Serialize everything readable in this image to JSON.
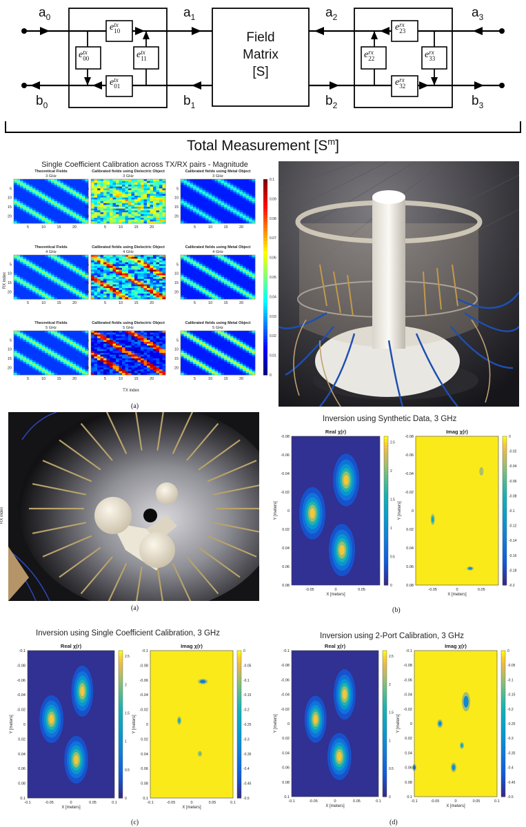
{
  "diagram": {
    "ports": {
      "a0": "a",
      "a0_sub": "0",
      "a1": "a",
      "a1_sub": "1",
      "a2": "a",
      "a2_sub": "2",
      "a3": "a",
      "a3_sub": "3",
      "b0": "b",
      "b0_sub": "0",
      "b1": "b",
      "b1_sub": "1",
      "b2": "b",
      "b2_sub": "2",
      "b3": "b",
      "b3_sub": "3"
    },
    "tx_terms": {
      "e10": "e",
      "e10_sup": "tx",
      "e10_sub": "10",
      "e00": "e",
      "e00_sup": "tx",
      "e00_sub": "00",
      "e11": "e",
      "e11_sup": "tx",
      "e11_sub": "11",
      "e01": "e",
      "e01_sup": "tx",
      "e01_sub": "01"
    },
    "rx_terms": {
      "e23": "e",
      "e23_sup": "rx",
      "e23_sub": "23",
      "e22": "e",
      "e22_sup": "rx",
      "e22_sub": "22",
      "e33": "e",
      "e33_sup": "rx",
      "e33_sub": "33",
      "e32": "e",
      "e32_sup": "rx",
      "e32_sub": "32"
    },
    "field_box": {
      "line1": "Field",
      "line2": "Matrix",
      "line3": "[S]"
    },
    "total_label": "Total Measurement [S",
    "total_label_sup": "m",
    "total_label_end": "]"
  },
  "grid_figure": {
    "title": "Single Coefficient Calibration across TX/RX pairs - Magnitude",
    "col_titles": [
      "Theoretical Fields",
      "Calibrated fields using Dielectric Object",
      "Calibrated fields using Metal Object"
    ],
    "freqs": [
      "3 GHz",
      "4 GHz",
      "5 GHz"
    ],
    "xlabel": "TX index",
    "ylabel": "RX index",
    "xticks": [
      "5",
      "10",
      "15",
      "20"
    ],
    "yticks": [
      "5",
      "10",
      "15",
      "20"
    ],
    "colorbar_ticks": [
      "0.1",
      "0.09",
      "0.08",
      "0.07",
      "0.06",
      "0.05",
      "0.04",
      "0.03",
      "0.02",
      "0.01",
      "0"
    ],
    "caption": "(a)"
  },
  "side_label": "RX index",
  "caption_a2": "(a)",
  "caption_b": "(b)",
  "caption_c": "(c)",
  "caption_d": "(d)",
  "inversions": [
    {
      "title": "Inversion using Synthetic Data, 3 GHz",
      "real_title": "Real χ(r)",
      "imag_title": "Imag χ(r)",
      "xlabel": "X [meters]",
      "ylabel": "Y [meters]",
      "yticks": [
        "-0.08",
        "-0.06",
        "-0.04",
        "-0.02",
        "0",
        "0.02",
        "0.04",
        "0.06",
        "0.08"
      ],
      "xticks": [
        "-0.05",
        "0",
        "0.05"
      ],
      "real_cbar": [
        "2.5",
        "2",
        "1.5",
        "1",
        "0.5",
        "0"
      ],
      "imag_cbar": [
        "0",
        "-0.02",
        "-0.04",
        "-0.06",
        "-0.08",
        "-0.1",
        "-0.12",
        "-0.14",
        "-0.16",
        "-0.18",
        "-0.2"
      ]
    },
    {
      "title": "Inversion using Single Coefficient Calibration, 3 GHz",
      "real_title": "Real χ(r)",
      "imag_title": "Imag χ(r)",
      "xlabel": "X [meters]",
      "ylabel": "Y [meters]",
      "yticks": [
        "-0.1",
        "-0.08",
        "-0.06",
        "-0.04",
        "-0.02",
        "0",
        "0.02",
        "0.04",
        "0.06",
        "0.08",
        "0.1"
      ],
      "xticks": [
        "-0.1",
        "-0.05",
        "0",
        "0.05",
        "0.1"
      ],
      "real_cbar": [
        "2.5",
        "2",
        "1.5",
        "1",
        "0.5",
        "0"
      ],
      "imag_cbar": [
        "0",
        "-0.05",
        "-0.1",
        "-0.15",
        "-0.2",
        "-0.25",
        "-0.3",
        "-0.35",
        "-0.4",
        "-0.45",
        "-0.5"
      ]
    },
    {
      "title": "Inversion using 2-Port Calibration, 3 GHz",
      "real_title": "Real χ(r)",
      "imag_title": "Imag χ(r)",
      "xlabel": "X [meters]",
      "ylabel": "Y [meters]",
      "yticks": [
        "-0.1",
        "-0.08",
        "-0.06",
        "-0.04",
        "-0.02",
        "0",
        "0.02",
        "0.04",
        "0.06",
        "0.08",
        "0.1"
      ],
      "xticks": [
        "-0.1",
        "-0.05",
        "0",
        "0.05",
        "0.1"
      ],
      "real_cbar": [
        "2.5",
        "2",
        "1.5",
        "1",
        "0.5",
        "0"
      ],
      "imag_cbar": [
        "0",
        "-0.05",
        "-0.1",
        "-0.15",
        "-0.2",
        "-0.25",
        "-0.3",
        "-0.35",
        "-0.4",
        "-0.45",
        "-0.5"
      ]
    }
  ],
  "colors": {
    "parula_dark": "#352a87",
    "parula_yellow": "#f9fb0e",
    "line": "#000000"
  }
}
